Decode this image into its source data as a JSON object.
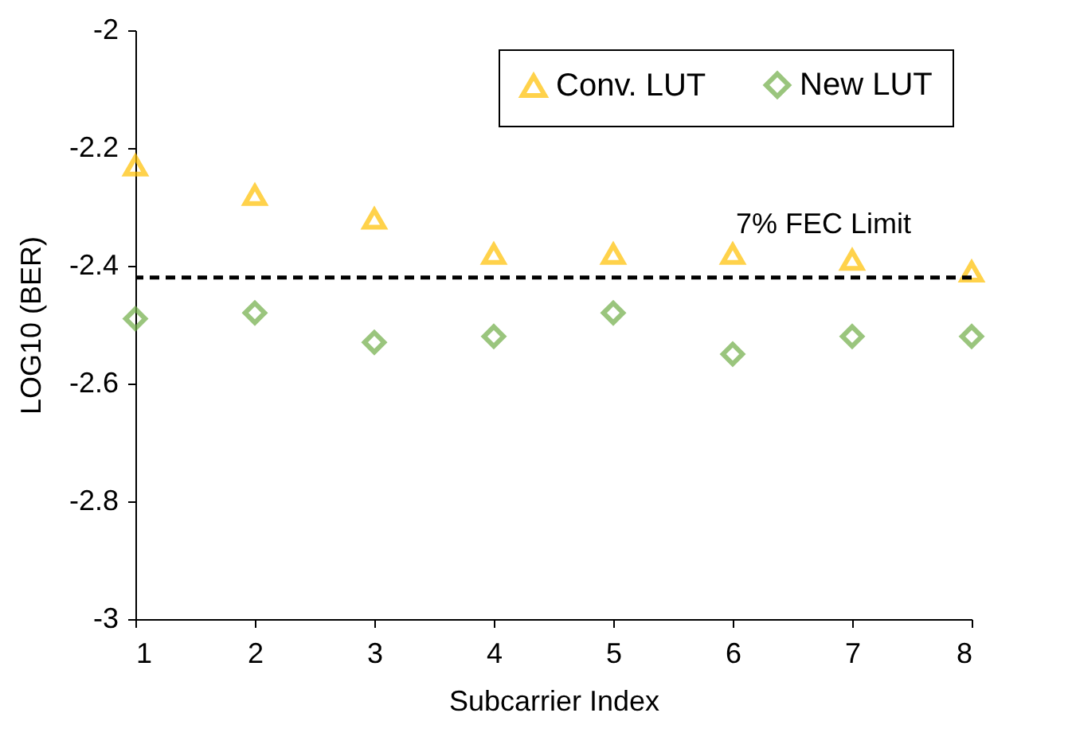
{
  "chart_data": {
    "type": "scatter",
    "xlabel": "Subcarrier Index",
    "ylabel": "LOG10 (BER)",
    "x": [
      1,
      2,
      3,
      4,
      5,
      6,
      7,
      8
    ],
    "series": [
      {
        "name": "Conv. LUT",
        "color": "#ffc000",
        "marker": "triangle",
        "values": [
          -2.23,
          -2.28,
          -2.32,
          -2.38,
          -2.38,
          -2.38,
          -2.39,
          -2.41
        ]
      },
      {
        "name": "New LUT",
        "color": "#70ad47",
        "marker": "diamond",
        "values": [
          -2.49,
          -2.48,
          -2.53,
          -2.52,
          -2.48,
          -2.55,
          -2.52,
          -2.52
        ]
      }
    ],
    "xlim": [
      1,
      8
    ],
    "xticks": [
      1,
      2,
      3,
      4,
      5,
      6,
      7,
      8
    ],
    "ylim": [
      -3,
      -2
    ],
    "yticks": [
      -3,
      -2.8,
      -2.6,
      -2.4,
      -2.2,
      -2
    ],
    "grid": false,
    "legend": "top right",
    "ref_lines": [
      {
        "axis": "y",
        "value": -2.42,
        "label": "7% FEC Limit",
        "color": "#000000",
        "line_style": "dashed"
      }
    ]
  }
}
